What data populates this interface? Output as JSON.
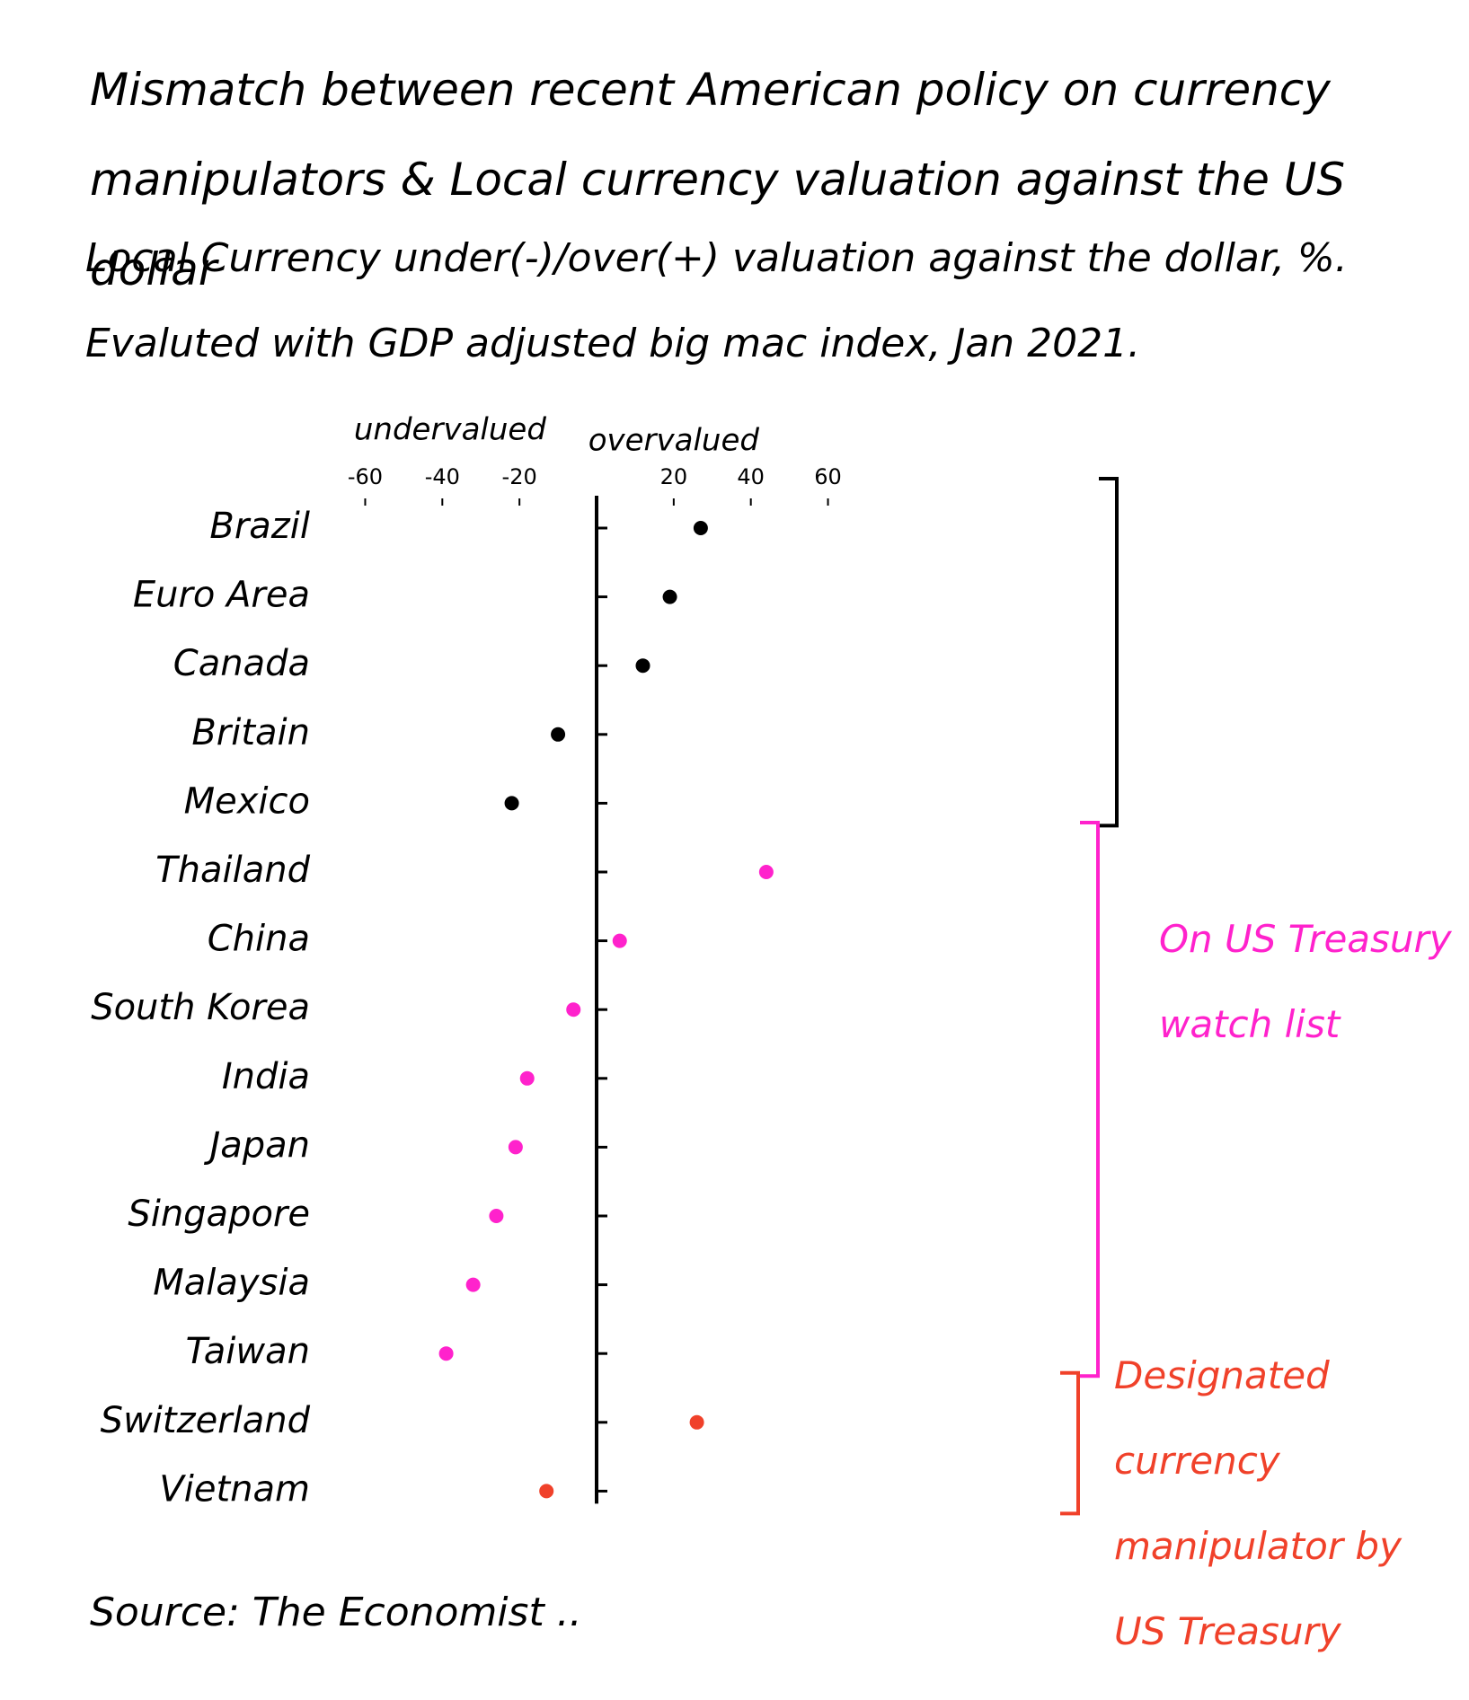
{
  "chart_data": {
    "type": "dot",
    "title": "Mismatch between recent American policy on currency manipulators & Local currency valuation against the US dollar",
    "subtitle": "Local Currency under(-)/over(+) valuation against the dollar, %. Evaluted with GDP adjusted big mac index, Jan 2021.",
    "x_label_left": "undervalued",
    "x_label_right": "overvalued",
    "source": "Source: The Economist ..",
    "categories": [
      "Brazil",
      "Euro Area",
      "Canada",
      "Britain",
      "Mexico",
      "Thailand",
      "China",
      "South Korea",
      "India",
      "Japan",
      "Singapore",
      "Malaysia",
      "Taiwan",
      "Switzerland",
      "Vietnam"
    ],
    "series": [
      {
        "color": "#000000",
        "values": [
          27,
          19,
          12,
          -10,
          -22,
          null,
          null,
          null,
          null,
          null,
          null,
          null,
          null,
          null,
          null
        ]
      },
      {
        "name": "On US Treasury watch list",
        "color": "#ff22cc",
        "values": [
          null,
          null,
          null,
          null,
          null,
          44,
          6,
          -6,
          -18,
          -21,
          -26,
          -32,
          -39,
          null,
          null
        ]
      },
      {
        "name": "Designated currency manipulator by US Treasury",
        "color": "#f0412a",
        "values": [
          null,
          null,
          null,
          null,
          null,
          null,
          null,
          null,
          null,
          null,
          null,
          null,
          null,
          26,
          -13
        ]
      }
    ],
    "xlim": [
      -65,
      65
    ],
    "xticks": [
      -60,
      -40,
      -20,
      20,
      40,
      60
    ]
  }
}
